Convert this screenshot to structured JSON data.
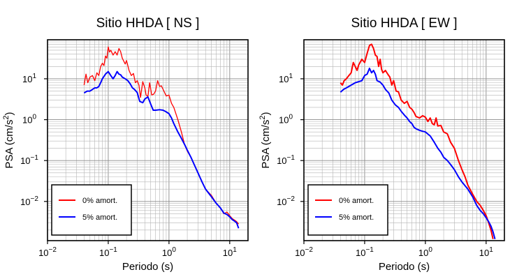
{
  "chart_data": [
    {
      "type": "line",
      "title": "Sitio HHDA [ NS ]",
      "xlabel": "Periodo (s)",
      "ylabel": "PSA (cm/s²)",
      "ylabel_parts": {
        "main": "PSA (cm/s",
        "sup": "2",
        "end": ")"
      },
      "xscale": "log",
      "yscale": "log",
      "xlim": [
        0.01,
        20
      ],
      "ylim": [
        0.0011,
        90
      ],
      "x_ticks": [
        {
          "base": "10",
          "exp": "−2",
          "value": 0.01
        },
        {
          "base": "10",
          "exp": "−1",
          "value": 0.1
        },
        {
          "base": "10",
          "exp": "0",
          "value": 1
        },
        {
          "base": "10",
          "exp": "1",
          "value": 10
        }
      ],
      "y_ticks": [
        {
          "base": "10",
          "exp": "−2",
          "value": 0.01
        },
        {
          "base": "10",
          "exp": "−1",
          "value": 0.1
        },
        {
          "base": "10",
          "exp": "0",
          "value": 1
        },
        {
          "base": "10",
          "exp": "1",
          "value": 10
        }
      ],
      "grid": true,
      "legend_position": "bottom-left",
      "series": [
        {
          "name": "0% amort.",
          "color": "#ff0000",
          "points": [
            [
              0.04,
              7
            ],
            [
              0.043,
              13
            ],
            [
              0.046,
              8
            ],
            [
              0.05,
              11
            ],
            [
              0.055,
              12
            ],
            [
              0.06,
              9
            ],
            [
              0.065,
              14
            ],
            [
              0.07,
              12
            ],
            [
              0.075,
              20
            ],
            [
              0.08,
              24
            ],
            [
              0.085,
              21
            ],
            [
              0.09,
              36
            ],
            [
              0.095,
              32
            ],
            [
              0.1,
              60
            ],
            [
              0.105,
              45
            ],
            [
              0.11,
              50
            ],
            [
              0.12,
              38
            ],
            [
              0.13,
              46
            ],
            [
              0.14,
              38
            ],
            [
              0.15,
              55
            ],
            [
              0.16,
              46
            ],
            [
              0.17,
              32
            ],
            [
              0.19,
              23
            ],
            [
              0.2,
              28
            ],
            [
              0.22,
              16
            ],
            [
              0.24,
              12
            ],
            [
              0.26,
              13.5
            ],
            [
              0.28,
              8
            ],
            [
              0.3,
              9
            ],
            [
              0.32,
              7
            ],
            [
              0.34,
              3.5
            ],
            [
              0.37,
              8.5
            ],
            [
              0.4,
              6
            ],
            [
              0.42,
              4
            ],
            [
              0.45,
              3.7
            ],
            [
              0.48,
              8
            ],
            [
              0.52,
              4
            ],
            [
              0.56,
              4.2
            ],
            [
              0.6,
              5
            ],
            [
              0.65,
              9
            ],
            [
              0.7,
              6.5
            ],
            [
              0.75,
              6.7
            ],
            [
              0.8,
              5.5
            ],
            [
              0.9,
              3.8
            ],
            [
              1.0,
              4.0
            ],
            [
              1.1,
              2.5
            ],
            [
              1.2,
              2.0
            ],
            [
              1.4,
              1.0
            ],
            [
              1.6,
              0.5
            ],
            [
              1.8,
              0.25
            ],
            [
              2.0,
              0.17
            ],
            [
              2.3,
              0.12
            ],
            [
              2.6,
              0.08
            ],
            [
              3.0,
              0.05
            ],
            [
              3.5,
              0.03
            ],
            [
              4.0,
              0.02
            ],
            [
              5.0,
              0.014
            ],
            [
              6.0,
              0.009
            ],
            [
              7.0,
              0.007
            ],
            [
              8.0,
              0.005
            ],
            [
              9.0,
              0.0055
            ],
            [
              10,
              0.0045
            ],
            [
              11,
              0.0038
            ],
            [
              12,
              0.0035
            ],
            [
              13,
              0.0032
            ],
            [
              14,
              0.0028
            ]
          ]
        },
        {
          "name": "5% amort.",
          "color": "#0000ff",
          "points": [
            [
              0.04,
              4.5
            ],
            [
              0.045,
              5
            ],
            [
              0.05,
              5
            ],
            [
              0.055,
              5.5
            ],
            [
              0.06,
              6
            ],
            [
              0.065,
              6
            ],
            [
              0.07,
              6.5
            ],
            [
              0.075,
              8
            ],
            [
              0.08,
              10
            ],
            [
              0.09,
              13
            ],
            [
              0.1,
              15
            ],
            [
              0.11,
              12
            ],
            [
              0.12,
              10
            ],
            [
              0.13,
              12
            ],
            [
              0.14,
              15
            ],
            [
              0.15,
              13
            ],
            [
              0.16,
              12.5
            ],
            [
              0.17,
              11
            ],
            [
              0.19,
              10
            ],
            [
              0.21,
              9
            ],
            [
              0.23,
              7.5
            ],
            [
              0.25,
              6
            ],
            [
              0.27,
              5.5
            ],
            [
              0.3,
              4.6
            ],
            [
              0.33,
              2.8
            ],
            [
              0.37,
              2.6
            ],
            [
              0.4,
              3.2
            ],
            [
              0.45,
              3.6
            ],
            [
              0.5,
              2.4
            ],
            [
              0.55,
              1.7
            ],
            [
              0.6,
              1.7
            ],
            [
              0.7,
              1.75
            ],
            [
              0.8,
              1.7
            ],
            [
              0.9,
              1.55
            ],
            [
              1.0,
              1.4
            ],
            [
              1.1,
              1.1
            ],
            [
              1.2,
              0.8
            ],
            [
              1.4,
              0.5
            ],
            [
              1.6,
              0.35
            ],
            [
              1.8,
              0.25
            ],
            [
              2.0,
              0.18
            ],
            [
              2.3,
              0.12
            ],
            [
              2.6,
              0.08
            ],
            [
              3.0,
              0.05
            ],
            [
              3.5,
              0.03
            ],
            [
              4.0,
              0.02
            ],
            [
              5.0,
              0.013
            ],
            [
              6.0,
              0.009
            ],
            [
              7.0,
              0.007
            ],
            [
              8.0,
              0.0052
            ],
            [
              9.0,
              0.0048
            ],
            [
              10,
              0.0042
            ],
            [
              11,
              0.0036
            ],
            [
              12,
              0.0033
            ],
            [
              13,
              0.003
            ],
            [
              14,
              0.0022
            ]
          ]
        }
      ]
    },
    {
      "type": "line",
      "title": "Sitio HHDA [ EW ]",
      "xlabel": "Periodo (s)",
      "ylabel": "PSA (cm/s²)",
      "ylabel_parts": {
        "main": "PSA (cm/s",
        "sup": "2",
        "end": ")"
      },
      "xscale": "log",
      "yscale": "log",
      "xlim": [
        0.01,
        20
      ],
      "ylim": [
        0.0011,
        90
      ],
      "x_ticks": [
        {
          "base": "10",
          "exp": "−2",
          "value": 0.01
        },
        {
          "base": "10",
          "exp": "−1",
          "value": 0.1
        },
        {
          "base": "10",
          "exp": "0",
          "value": 1
        },
        {
          "base": "10",
          "exp": "1",
          "value": 10
        }
      ],
      "y_ticks": [
        {
          "base": "10",
          "exp": "−2",
          "value": 0.01
        },
        {
          "base": "10",
          "exp": "−1",
          "value": 0.1
        },
        {
          "base": "10",
          "exp": "0",
          "value": 1
        },
        {
          "base": "10",
          "exp": "1",
          "value": 10
        }
      ],
      "grid": true,
      "legend_position": "bottom-left",
      "series": [
        {
          "name": "0% amort.",
          "color": "#ff0000",
          "points": [
            [
              0.04,
              8
            ],
            [
              0.043,
              7
            ],
            [
              0.046,
              9
            ],
            [
              0.05,
              10
            ],
            [
              0.055,
              12
            ],
            [
              0.06,
              14
            ],
            [
              0.065,
              25
            ],
            [
              0.07,
              20
            ],
            [
              0.075,
              16
            ],
            [
              0.08,
              22
            ],
            [
              0.09,
              30
            ],
            [
              0.1,
              25
            ],
            [
              0.11,
              42
            ],
            [
              0.12,
              65
            ],
            [
              0.13,
              70
            ],
            [
              0.14,
              55
            ],
            [
              0.15,
              38
            ],
            [
              0.16,
              35
            ],
            [
              0.17,
              20
            ],
            [
              0.18,
              30
            ],
            [
              0.19,
              17
            ],
            [
              0.2,
              14
            ],
            [
              0.22,
              16
            ],
            [
              0.24,
              13
            ],
            [
              0.26,
              11
            ],
            [
              0.28,
              7
            ],
            [
              0.3,
              9
            ],
            [
              0.33,
              5
            ],
            [
              0.36,
              4.8
            ],
            [
              0.4,
              3
            ],
            [
              0.45,
              2.5
            ],
            [
              0.5,
              2.8
            ],
            [
              0.55,
              2.0
            ],
            [
              0.6,
              1.8
            ],
            [
              0.65,
              1.5
            ],
            [
              0.7,
              1.2
            ],
            [
              0.8,
              1.1
            ],
            [
              0.9,
              1.25
            ],
            [
              1.0,
              1.15
            ],
            [
              1.1,
              0.9
            ],
            [
              1.2,
              1.1
            ],
            [
              1.3,
              0.8
            ],
            [
              1.4,
              0.75
            ],
            [
              1.5,
              1.1
            ],
            [
              1.6,
              0.7
            ],
            [
              1.8,
              0.72
            ],
            [
              2.0,
              0.5
            ],
            [
              2.3,
              0.45
            ],
            [
              2.6,
              0.28
            ],
            [
              3.0,
              0.2
            ],
            [
              3.5,
              0.1
            ],
            [
              4.0,
              0.06
            ],
            [
              4.5,
              0.04
            ],
            [
              5.0,
              0.025
            ],
            [
              6.0,
              0.015
            ],
            [
              7.0,
              0.01
            ],
            [
              8.0,
              0.008
            ],
            [
              9.0,
              0.006
            ],
            [
              10,
              0.0045
            ],
            [
              11,
              0.003
            ],
            [
              12,
              0.002
            ],
            [
              13,
              0.0012
            ]
          ]
        },
        {
          "name": "5% amort.",
          "color": "#0000ff",
          "points": [
            [
              0.04,
              4.7
            ],
            [
              0.045,
              5.5
            ],
            [
              0.05,
              6
            ],
            [
              0.06,
              7
            ],
            [
              0.07,
              8
            ],
            [
              0.08,
              8.5
            ],
            [
              0.09,
              9
            ],
            [
              0.1,
              12
            ],
            [
              0.11,
              13
            ],
            [
              0.12,
              18
            ],
            [
              0.13,
              14
            ],
            [
              0.14,
              16
            ],
            [
              0.15,
              13
            ],
            [
              0.16,
              9
            ],
            [
              0.18,
              8.3
            ],
            [
              0.2,
              7
            ],
            [
              0.22,
              5.5
            ],
            [
              0.25,
              4.5
            ],
            [
              0.28,
              3
            ],
            [
              0.32,
              2.3
            ],
            [
              0.36,
              2
            ],
            [
              0.4,
              1.6
            ],
            [
              0.45,
              1.3
            ],
            [
              0.5,
              1.1
            ],
            [
              0.55,
              0.9
            ],
            [
              0.6,
              0.8
            ],
            [
              0.65,
              0.65
            ],
            [
              0.7,
              0.6
            ],
            [
              0.8,
              0.55
            ],
            [
              0.9,
              0.52
            ],
            [
              1.0,
              0.5
            ],
            [
              1.2,
              0.4
            ],
            [
              1.4,
              0.28
            ],
            [
              1.6,
              0.2
            ],
            [
              1.8,
              0.16
            ],
            [
              2.0,
              0.12
            ],
            [
              2.3,
              0.1
            ],
            [
              2.6,
              0.08
            ],
            [
              3.0,
              0.06
            ],
            [
              3.5,
              0.04
            ],
            [
              4.0,
              0.03
            ],
            [
              5.0,
              0.02
            ],
            [
              6.0,
              0.013
            ],
            [
              7.0,
              0.008
            ],
            [
              8.0,
              0.006
            ],
            [
              9.0,
              0.005
            ],
            [
              10,
              0.004
            ],
            [
              11,
              0.0032
            ],
            [
              12,
              0.0025
            ],
            [
              13,
              0.0018
            ],
            [
              14,
              0.0012
            ]
          ]
        }
      ]
    }
  ]
}
